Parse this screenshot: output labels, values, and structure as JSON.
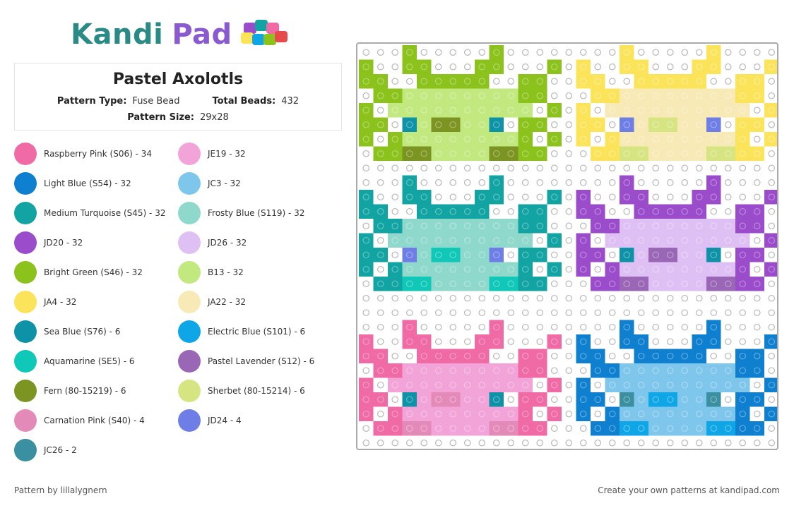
{
  "brand": {
    "logo_text_kandi": "Kandi",
    "logo_text_pad": "Pad",
    "logo_colors": {
      "kandi": "#2a8a86",
      "pad": "#8a5bd0"
    }
  },
  "pattern": {
    "title": "Pastel Axolotls",
    "type_label": "Pattern Type:",
    "type_value": "Fuse Bead",
    "beads_label": "Total Beads:",
    "beads_value": "432",
    "size_label": "Pattern Size:",
    "size_value": "29x28"
  },
  "legend": [
    {
      "label": "Raspberry Pink (S06) - 34",
      "color": "#f06aa6"
    },
    {
      "label": "JE19 - 32",
      "color": "#f2a3d8"
    },
    {
      "label": "Light Blue (S54) - 32",
      "color": "#0e80cf"
    },
    {
      "label": "JC3 - 32",
      "color": "#7fc6ec"
    },
    {
      "label": "Medium Turquoise (S45) - 32",
      "color": "#12a3a3"
    },
    {
      "label": "Frosty Blue (S119) - 32",
      "color": "#8fd8cc"
    },
    {
      "label": "JD20 - 32",
      "color": "#9b4ccb"
    },
    {
      "label": "JD26 - 32",
      "color": "#dfc0f4"
    },
    {
      "label": "Bright Green (S46) - 32",
      "color": "#8cc21c"
    },
    {
      "label": "B13 - 32",
      "color": "#c2e880"
    },
    {
      "label": "JA4 - 32",
      "color": "#fbe45a"
    },
    {
      "label": "JA22 - 32",
      "color": "#f7eab6"
    },
    {
      "label": "Sea Blue (S76) - 6",
      "color": "#0e92a8"
    },
    {
      "label": "Electric Blue (S101) - 6",
      "color": "#0ea6e6"
    },
    {
      "label": "Aquamarine (SE5) - 6",
      "color": "#10c8b8"
    },
    {
      "label": "Pastel Lavender (S12) - 6",
      "color": "#9a67b6"
    },
    {
      "label": "Fern (80-15219) - 6",
      "color": "#7c9422"
    },
    {
      "label": "Sherbet (80-15214) - 6",
      "color": "#d6e582"
    },
    {
      "label": "Carnation Pink (S40) - 4",
      "color": "#e48ab8"
    },
    {
      "label": "JD24 - 4",
      "color": "#6e7ee6"
    },
    {
      "label": "JC26 - 2",
      "color": "#3a8fa0"
    }
  ],
  "footer": {
    "credit": "Pattern by lillalygnern",
    "promo": "Create your own patterns at kandipad.com"
  },
  "board": {
    "cols": 29,
    "rows": 28,
    "empty_color": "#ffffff",
    "peg_color": "#b8b8b8",
    "axolotls": [
      {
        "name": "green",
        "col": 0,
        "row": 0,
        "edge": "#8cc21c",
        "body": "#c2e880",
        "eye": "#0e92a8",
        "mouth": "#7c9422",
        "accent": "#d6e582"
      },
      {
        "name": "yellow",
        "col": 15,
        "row": 0,
        "edge": "#fbe45a",
        "body": "#f7eab6",
        "eye": "#6e7ee6",
        "mouth": "#d6e582",
        "accent": "#d6e582"
      },
      {
        "name": "turquoise",
        "col": 0,
        "row": 9,
        "edge": "#12a3a3",
        "body": "#8fd8cc",
        "eye": "#6e7ee6",
        "mouth": "#10c8b8",
        "accent": "#10c8b8"
      },
      {
        "name": "purple",
        "col": 15,
        "row": 9,
        "edge": "#9b4ccb",
        "body": "#dfc0f4",
        "eye": "#0e92a8",
        "mouth": "#9a67b6",
        "accent": "#9a67b6"
      },
      {
        "name": "pink",
        "col": 0,
        "row": 19,
        "edge": "#f06aa6",
        "body": "#f2a3d8",
        "eye": "#0e92a8",
        "mouth": "#e48ab8",
        "accent": "#e48ab8"
      },
      {
        "name": "blue",
        "col": 15,
        "row": 19,
        "edge": "#0e80cf",
        "body": "#7fc6ec",
        "eye": "#3a8fa0",
        "mouth": "#0ea6e6",
        "accent": "#0ea6e6"
      }
    ]
  }
}
